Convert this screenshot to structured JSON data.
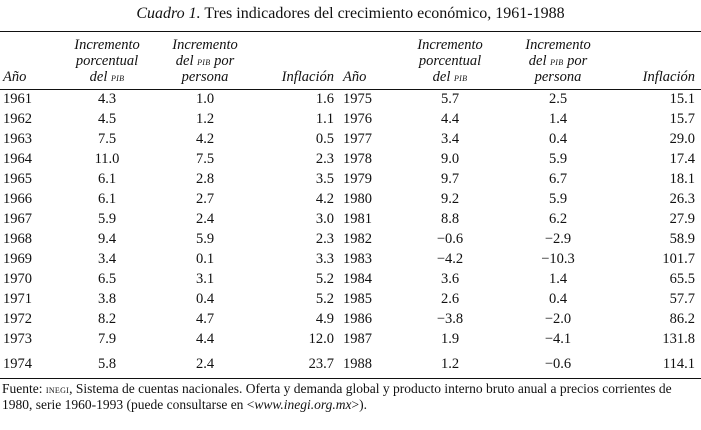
{
  "caption": {
    "label": "Cuadro 1.",
    "title": "Tres indicadores del crecimiento económico, 1961-1988"
  },
  "headers": {
    "year": "Año",
    "growth": [
      "Incremento",
      "porcentual",
      "del",
      "pib"
    ],
    "percap": [
      "Incremento",
      "del",
      "pib",
      "por",
      "persona"
    ],
    "inflation": "Inflación"
  },
  "rows_left": [
    [
      "1961",
      "4.3",
      "1.0",
      "1.6"
    ],
    [
      "1962",
      "4.5",
      "1.2",
      "1.1"
    ],
    [
      "1963",
      "7.5",
      "4.2",
      "0.5"
    ],
    [
      "1964",
      "11.0",
      "7.5",
      "2.3"
    ],
    [
      "1965",
      "6.1",
      "2.8",
      "3.5"
    ],
    [
      "1966",
      "6.1",
      "2.7",
      "4.2"
    ],
    [
      "1967",
      "5.9",
      "2.4",
      "3.0"
    ],
    [
      "1968",
      "9.4",
      "5.9",
      "2.3"
    ],
    [
      "1969",
      "3.4",
      "0.1",
      "3.3"
    ],
    [
      "1970",
      "6.5",
      "3.1",
      "5.2"
    ],
    [
      "1971",
      "3.8",
      "0.4",
      "5.2"
    ],
    [
      "1972",
      "8.2",
      "4.7",
      "4.9"
    ],
    [
      "1973",
      "7.9",
      "4.4",
      "12.0"
    ],
    [
      "1974",
      "5.8",
      "2.4",
      "23.7"
    ]
  ],
  "rows_right": [
    [
      "1975",
      "5.7",
      "2.5",
      "15.1"
    ],
    [
      "1976",
      "4.4",
      "1.4",
      "15.7"
    ],
    [
      "1977",
      "3.4",
      "0.4",
      "29.0"
    ],
    [
      "1978",
      "9.0",
      "5.9",
      "17.4"
    ],
    [
      "1979",
      "9.7",
      "6.7",
      "18.1"
    ],
    [
      "1980",
      "9.2",
      "5.9",
      "26.3"
    ],
    [
      "1981",
      "8.8",
      "6.2",
      "27.9"
    ],
    [
      "1982",
      "−0.6",
      "−2.9",
      "58.9"
    ],
    [
      "1983",
      "−4.2",
      "−10.3",
      "101.7"
    ],
    [
      "1984",
      "3.6",
      "1.4",
      "65.5"
    ],
    [
      "1985",
      "2.6",
      "0.4",
      "57.7"
    ],
    [
      "1986",
      "−3.8",
      "−2.0",
      "86.2"
    ],
    [
      "1987",
      "1.9",
      "−4.1",
      "131.8"
    ],
    [
      "1988",
      "1.2",
      "−0.6",
      "114.1"
    ]
  ],
  "source": {
    "prefix": "Fuente: ",
    "org": "inegi",
    "text": ", Sistema de cuentas nacionales. Oferta y demanda global y producto interno bruto anual a precios corrientes de 1980, serie 1960-1993 (puede consultarse en <",
    "url": "www.inegi.org.mx",
    "suffix": ">)."
  }
}
